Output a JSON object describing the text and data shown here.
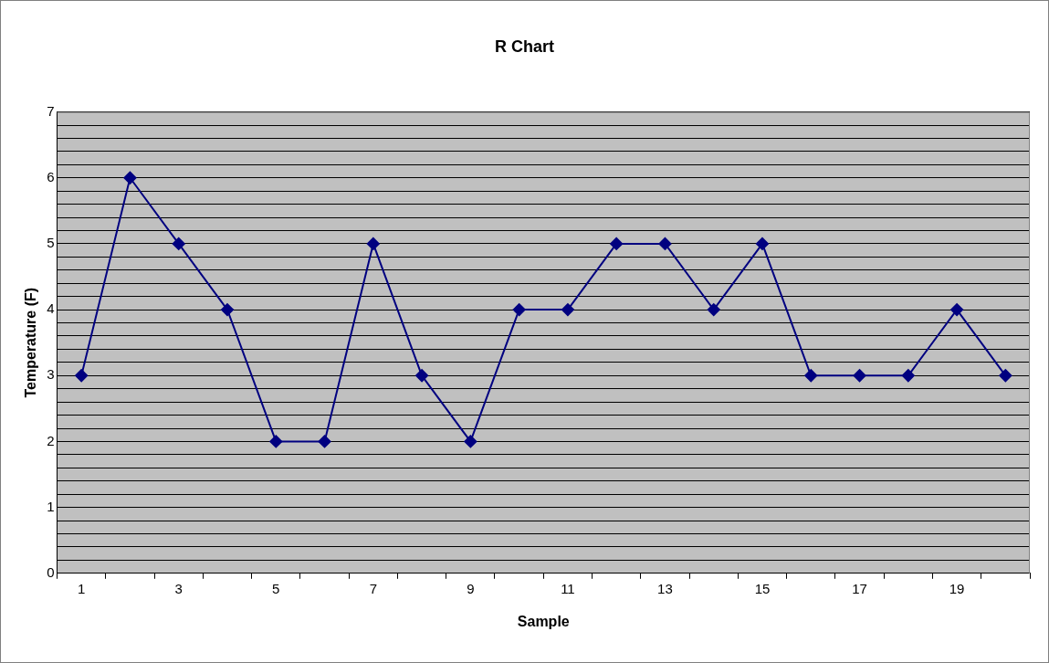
{
  "chart_data": {
    "type": "line",
    "title": "R Chart",
    "xlabel": "Sample",
    "ylabel": "Temperature (F)",
    "categories": [
      "1",
      null,
      "3",
      null,
      "5",
      null,
      "7",
      null,
      "9",
      null,
      "11",
      null,
      "13",
      null,
      "15",
      null,
      "17",
      null,
      "19",
      null
    ],
    "series": [
      {
        "color": "#000080",
        "values": [
          3,
          6,
          5,
          4,
          2,
          2,
          5,
          3,
          2,
          4,
          4,
          5,
          5,
          4,
          5,
          3,
          3,
          3,
          4,
          3
        ]
      }
    ],
    "ylim": [
      0,
      7
    ],
    "yticks": [
      0,
      {
        "value": 0.2,
        "label": null
      },
      {
        "value": 0.4,
        "label": null
      },
      {
        "value": 0.6,
        "label": null
      },
      {
        "value": 0.8,
        "label": null
      },
      1,
      {
        "value": 1.2,
        "label": null
      },
      {
        "value": 1.4,
        "label": null
      },
      {
        "value": 1.6,
        "label": null
      },
      {
        "value": 1.8,
        "label": null
      },
      2,
      {
        "value": 2.2,
        "label": null
      },
      {
        "value": 2.4,
        "label": null
      },
      {
        "value": 2.6,
        "label": null
      },
      {
        "value": 2.8,
        "label": null
      },
      3,
      {
        "value": 3.2,
        "label": null
      },
      {
        "value": 3.4,
        "label": null
      },
      {
        "value": 3.6,
        "label": null
      },
      {
        "value": 3.8,
        "label": null
      },
      4,
      {
        "value": 4.2,
        "label": null
      },
      {
        "value": 4.4,
        "label": null
      },
      {
        "value": 4.6,
        "label": null
      },
      {
        "value": 4.8,
        "label": null
      },
      5,
      {
        "value": 5.2,
        "label": null
      },
      {
        "value": 5.4,
        "label": null
      },
      {
        "value": 5.6,
        "label": null
      },
      {
        "value": 5.8,
        "label": null
      },
      6,
      {
        "value": 6.2,
        "label": null
      },
      {
        "value": 6.4,
        "label": null
      },
      {
        "value": 6.6,
        "label": null
      },
      {
        "value": 6.8,
        "label": null
      },
      7
    ],
    "grid": "y",
    "marker": "diamond",
    "line_style": "solid"
  }
}
